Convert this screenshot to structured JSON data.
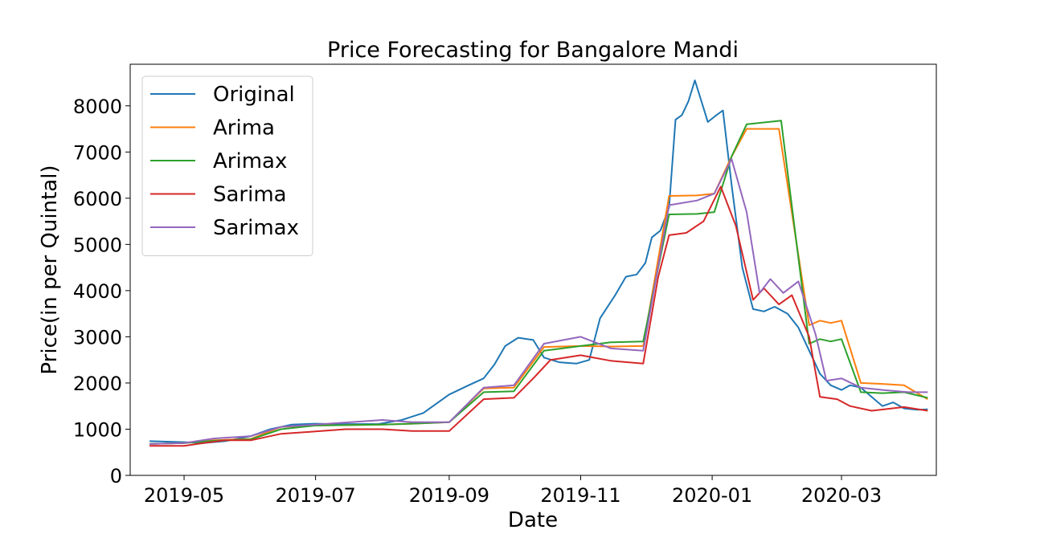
{
  "chart_data": {
    "type": "line",
    "title": "Price Forecasting for Bangalore Mandi",
    "xlabel": "Date",
    "ylabel": "Price(in per Quintal)",
    "xlim": [
      "2019-04-06",
      "2020-04-14"
    ],
    "ylim": [
      0,
      8900
    ],
    "xticks": [
      {
        "date": "2019-05-01",
        "label": "2019-05"
      },
      {
        "date": "2019-07-01",
        "label": "2019-07"
      },
      {
        "date": "2019-09-01",
        "label": "2019-09"
      },
      {
        "date": "2019-11-01",
        "label": "2019-11"
      },
      {
        "date": "2020-01-01",
        "label": "2020-01"
      },
      {
        "date": "2020-03-01",
        "label": "2020-03"
      }
    ],
    "yticks": [
      0,
      1000,
      2000,
      3000,
      4000,
      5000,
      6000,
      7000,
      8000
    ],
    "grid": false,
    "legend_position": "top-left",
    "series": [
      {
        "name": "Original",
        "color": "#1f77b4",
        "points": [
          [
            "2019-04-15",
            740
          ],
          [
            "2019-05-01",
            720
          ],
          [
            "2019-05-10",
            700
          ],
          [
            "2019-05-20",
            740
          ],
          [
            "2019-06-01",
            850
          ],
          [
            "2019-06-10",
            1000
          ],
          [
            "2019-06-20",
            1100
          ],
          [
            "2019-07-01",
            1120
          ],
          [
            "2019-07-10",
            1110
          ],
          [
            "2019-07-20",
            1110
          ],
          [
            "2019-07-30",
            1110
          ],
          [
            "2019-08-10",
            1200
          ],
          [
            "2019-08-20",
            1350
          ],
          [
            "2019-09-01",
            1750
          ],
          [
            "2019-09-10",
            1950
          ],
          [
            "2019-09-17",
            2100
          ],
          [
            "2019-09-22",
            2400
          ],
          [
            "2019-09-27",
            2800
          ],
          [
            "2019-10-03",
            2980
          ],
          [
            "2019-10-10",
            2930
          ],
          [
            "2019-10-15",
            2550
          ],
          [
            "2019-10-22",
            2450
          ],
          [
            "2019-10-30",
            2420
          ],
          [
            "2019-11-05",
            2500
          ],
          [
            "2019-11-10",
            3400
          ],
          [
            "2019-11-17",
            3900
          ],
          [
            "2019-11-22",
            4300
          ],
          [
            "2019-11-27",
            4350
          ],
          [
            "2019-12-01",
            4600
          ],
          [
            "2019-12-04",
            5150
          ],
          [
            "2019-12-08",
            5300
          ],
          [
            "2019-12-12",
            5800
          ],
          [
            "2019-12-15",
            7700
          ],
          [
            "2019-12-18",
            7800
          ],
          [
            "2019-12-21",
            8100
          ],
          [
            "2019-12-24",
            8550
          ],
          [
            "2019-12-27",
            8100
          ],
          [
            "2019-12-30",
            7650
          ],
          [
            "2020-01-03",
            7800
          ],
          [
            "2020-01-06",
            7900
          ],
          [
            "2020-01-10",
            6300
          ],
          [
            "2020-01-15",
            4500
          ],
          [
            "2020-01-20",
            3600
          ],
          [
            "2020-01-25",
            3550
          ],
          [
            "2020-01-30",
            3650
          ],
          [
            "2020-02-05",
            3500
          ],
          [
            "2020-02-10",
            3200
          ],
          [
            "2020-02-15",
            2700
          ],
          [
            "2020-02-20",
            2200
          ],
          [
            "2020-02-25",
            1950
          ],
          [
            "2020-03-01",
            1850
          ],
          [
            "2020-03-05",
            1950
          ],
          [
            "2020-03-10",
            1900
          ],
          [
            "2020-03-15",
            1700
          ],
          [
            "2020-03-20",
            1500
          ],
          [
            "2020-03-25",
            1580
          ],
          [
            "2020-03-30",
            1450
          ],
          [
            "2020-04-05",
            1420
          ],
          [
            "2020-04-10",
            1430
          ]
        ]
      },
      {
        "name": "Arima",
        "color": "#ff7f0e",
        "points": [
          [
            "2019-04-15",
            680
          ],
          [
            "2019-05-01",
            700
          ],
          [
            "2019-05-15",
            760
          ],
          [
            "2019-06-01",
            790
          ],
          [
            "2019-06-15",
            1050
          ],
          [
            "2019-07-01",
            1080
          ],
          [
            "2019-08-01",
            1100
          ],
          [
            "2019-08-15",
            1120
          ],
          [
            "2019-09-01",
            1150
          ],
          [
            "2019-09-17",
            1880
          ],
          [
            "2019-10-01",
            1900
          ],
          [
            "2019-10-15",
            2780
          ],
          [
            "2019-11-01",
            2800
          ],
          [
            "2019-11-15",
            2790
          ],
          [
            "2019-11-30",
            2800
          ],
          [
            "2019-12-12",
            6050
          ],
          [
            "2019-12-25",
            6060
          ],
          [
            "2020-01-02",
            6100
          ],
          [
            "2020-01-10",
            6900
          ],
          [
            "2020-01-17",
            7500
          ],
          [
            "2020-02-01",
            7500
          ],
          [
            "2020-02-15",
            3250
          ],
          [
            "2020-02-20",
            3350
          ],
          [
            "2020-02-25",
            3300
          ],
          [
            "2020-03-01",
            3350
          ],
          [
            "2020-03-10",
            2000
          ],
          [
            "2020-03-20",
            1980
          ],
          [
            "2020-03-30",
            1950
          ],
          [
            "2020-04-10",
            1650
          ]
        ]
      },
      {
        "name": "Arimax",
        "color": "#2ca02c",
        "points": [
          [
            "2019-04-15",
            680
          ],
          [
            "2019-05-01",
            700
          ],
          [
            "2019-05-15",
            750
          ],
          [
            "2019-06-01",
            780
          ],
          [
            "2019-06-15",
            1000
          ],
          [
            "2019-07-01",
            1080
          ],
          [
            "2019-08-01",
            1100
          ],
          [
            "2019-08-15",
            1120
          ],
          [
            "2019-09-01",
            1150
          ],
          [
            "2019-09-17",
            1800
          ],
          [
            "2019-10-01",
            1820
          ],
          [
            "2019-10-15",
            2700
          ],
          [
            "2019-11-01",
            2800
          ],
          [
            "2019-11-15",
            2880
          ],
          [
            "2019-11-30",
            2900
          ],
          [
            "2019-12-12",
            5650
          ],
          [
            "2019-12-25",
            5660
          ],
          [
            "2020-01-02",
            5700
          ],
          [
            "2020-01-10",
            6900
          ],
          [
            "2020-01-17",
            7600
          ],
          [
            "2020-02-02",
            7680
          ],
          [
            "2020-02-15",
            2850
          ],
          [
            "2020-02-20",
            2950
          ],
          [
            "2020-02-25",
            2900
          ],
          [
            "2020-03-01",
            2950
          ],
          [
            "2020-03-10",
            1800
          ],
          [
            "2020-03-20",
            1780
          ],
          [
            "2020-03-30",
            1800
          ],
          [
            "2020-04-10",
            1680
          ]
        ]
      },
      {
        "name": "Sarima",
        "color": "#d62728",
        "points": [
          [
            "2019-04-15",
            640
          ],
          [
            "2019-05-01",
            640
          ],
          [
            "2019-05-10",
            700
          ],
          [
            "2019-05-20",
            760
          ],
          [
            "2019-06-01",
            760
          ],
          [
            "2019-06-15",
            900
          ],
          [
            "2019-07-01",
            950
          ],
          [
            "2019-07-15",
            1000
          ],
          [
            "2019-08-01",
            1000
          ],
          [
            "2019-08-15",
            960
          ],
          [
            "2019-09-01",
            960
          ],
          [
            "2019-09-17",
            1650
          ],
          [
            "2019-10-01",
            1680
          ],
          [
            "2019-10-10",
            2100
          ],
          [
            "2019-10-18",
            2500
          ],
          [
            "2019-11-01",
            2600
          ],
          [
            "2019-11-15",
            2480
          ],
          [
            "2019-11-30",
            2420
          ],
          [
            "2019-12-07",
            4300
          ],
          [
            "2019-12-12",
            5200
          ],
          [
            "2019-12-20",
            5250
          ],
          [
            "2019-12-28",
            5500
          ],
          [
            "2020-01-05",
            6250
          ],
          [
            "2020-01-12",
            5400
          ],
          [
            "2020-01-20",
            3800
          ],
          [
            "2020-01-25",
            4050
          ],
          [
            "2020-02-01",
            3700
          ],
          [
            "2020-02-07",
            3900
          ],
          [
            "2020-02-15",
            3000
          ],
          [
            "2020-02-20",
            1700
          ],
          [
            "2020-02-28",
            1650
          ],
          [
            "2020-03-05",
            1500
          ],
          [
            "2020-03-15",
            1400
          ],
          [
            "2020-03-30",
            1480
          ],
          [
            "2020-04-10",
            1400
          ]
        ]
      },
      {
        "name": "Sarimax",
        "color": "#9467bd",
        "points": [
          [
            "2019-04-15",
            680
          ],
          [
            "2019-05-01",
            700
          ],
          [
            "2019-05-15",
            800
          ],
          [
            "2019-06-01",
            850
          ],
          [
            "2019-06-15",
            1050
          ],
          [
            "2019-07-01",
            1100
          ],
          [
            "2019-08-01",
            1200
          ],
          [
            "2019-08-15",
            1150
          ],
          [
            "2019-09-01",
            1150
          ],
          [
            "2019-09-17",
            1900
          ],
          [
            "2019-10-01",
            1950
          ],
          [
            "2019-10-15",
            2850
          ],
          [
            "2019-11-01",
            3000
          ],
          [
            "2019-11-15",
            2750
          ],
          [
            "2019-11-30",
            2700
          ],
          [
            "2019-12-12",
            5850
          ],
          [
            "2019-12-25",
            5950
          ],
          [
            "2020-01-02",
            6100
          ],
          [
            "2020-01-10",
            6850
          ],
          [
            "2020-01-17",
            5700
          ],
          [
            "2020-01-23",
            3950
          ],
          [
            "2020-01-28",
            4250
          ],
          [
            "2020-02-03",
            3950
          ],
          [
            "2020-02-10",
            4200
          ],
          [
            "2020-02-18",
            3050
          ],
          [
            "2020-02-23",
            2050
          ],
          [
            "2020-03-01",
            2100
          ],
          [
            "2020-03-10",
            1900
          ],
          [
            "2020-03-20",
            1850
          ],
          [
            "2020-04-01",
            1800
          ],
          [
            "2020-04-10",
            1800
          ]
        ]
      }
    ]
  }
}
